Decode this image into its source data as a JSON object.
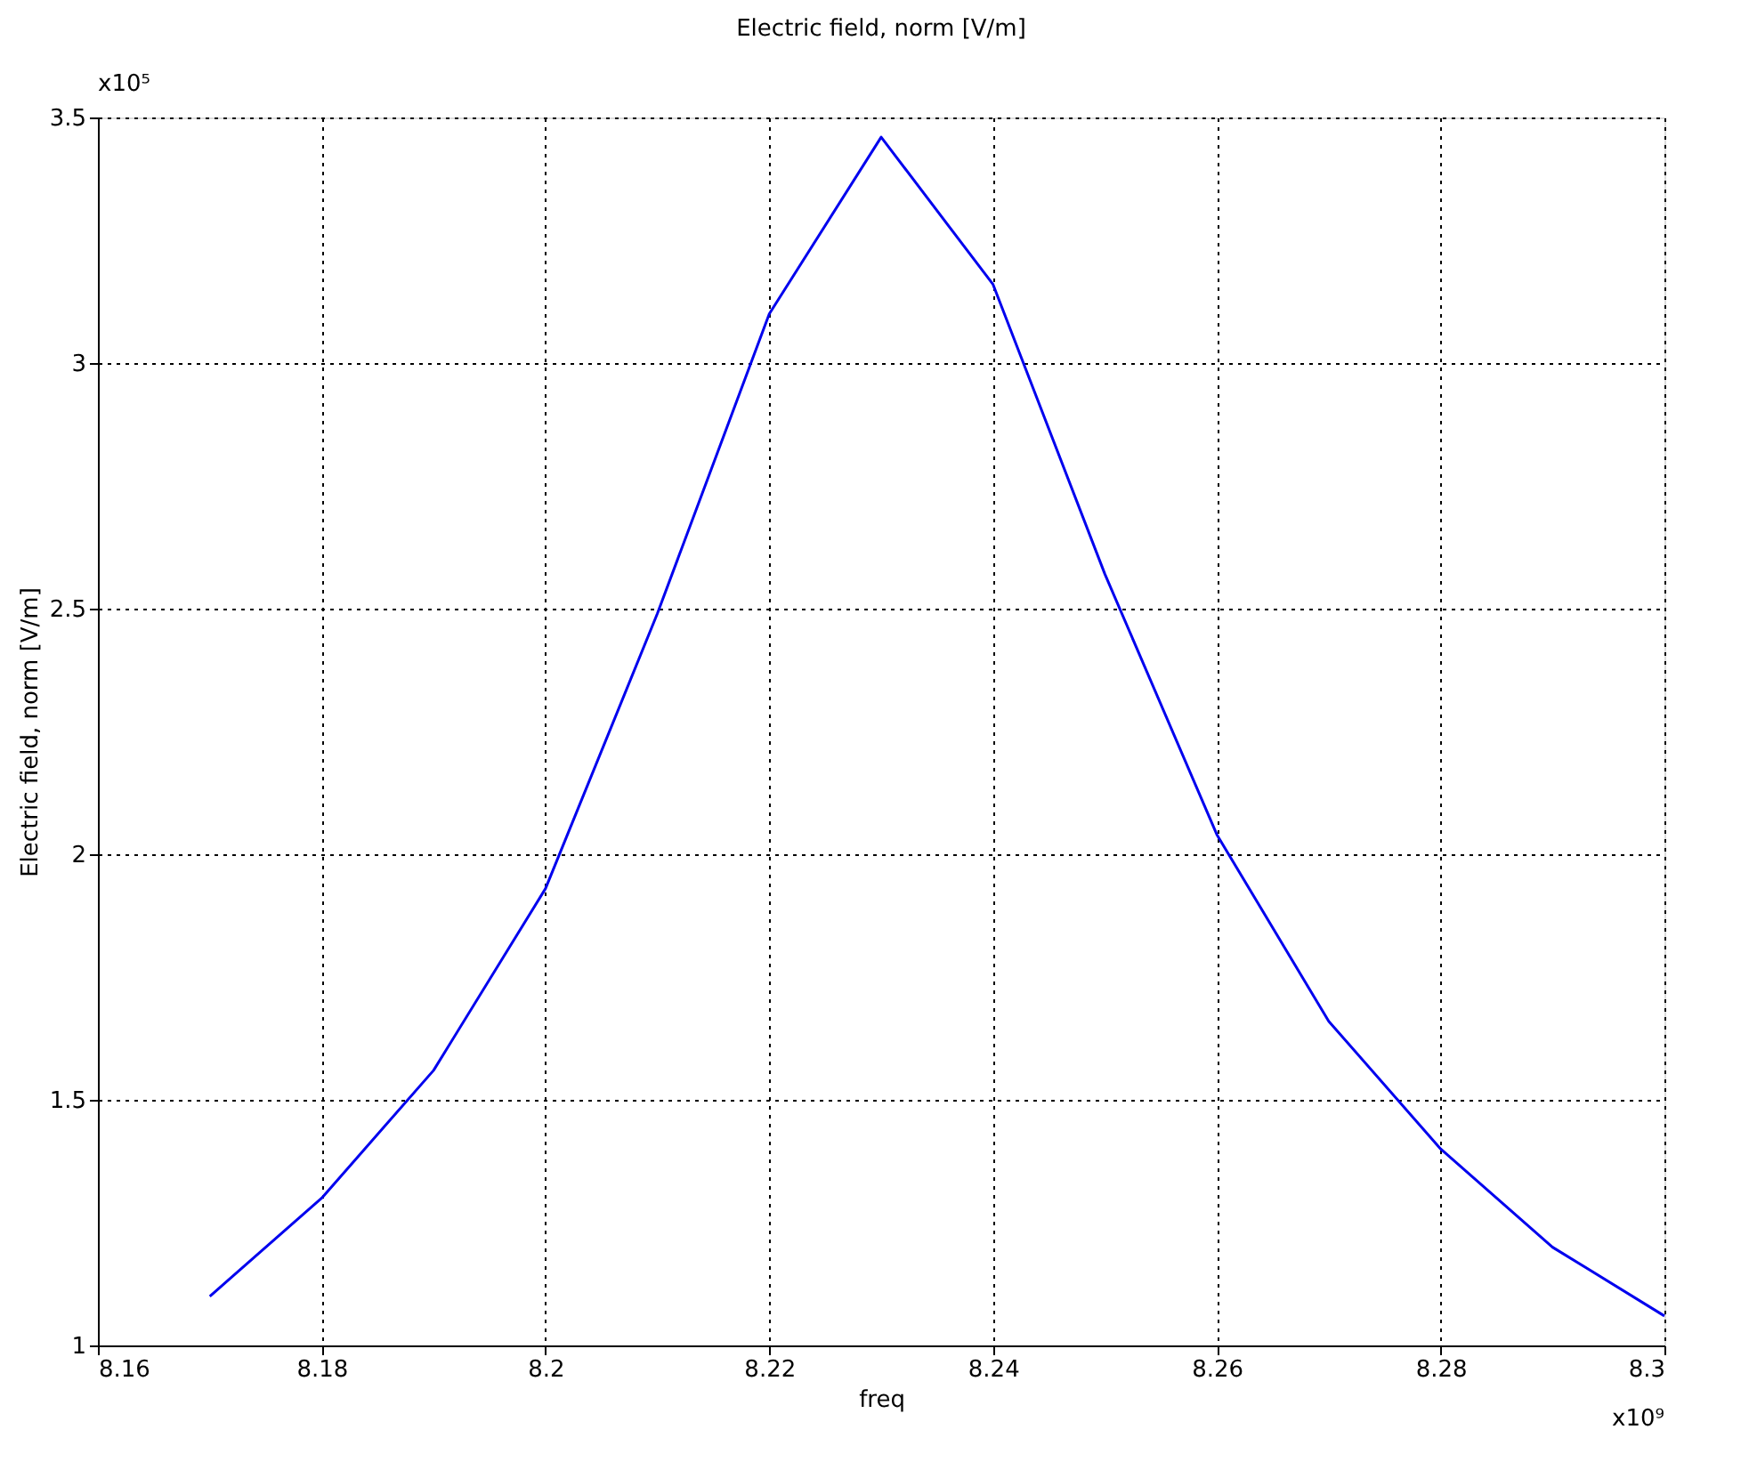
{
  "chart_data": {
    "type": "line",
    "title": "Electric field, norm [V/m]",
    "xlabel": "freq",
    "ylabel": "Electric field, norm [V/m]",
    "x": [
      8.17,
      8.18,
      8.19,
      8.2,
      8.21,
      8.22,
      8.23,
      8.24,
      8.25,
      8.26,
      8.27,
      8.28,
      8.29,
      8.3
    ],
    "series": [
      {
        "color": "#0000ee",
        "values": [
          1.1,
          1.3,
          1.56,
          1.93,
          2.49,
          3.1,
          3.46,
          3.16,
          2.57,
          2.04,
          1.66,
          1.4,
          1.2,
          1.06
        ]
      }
    ],
    "xlim": [
      8.16,
      8.3
    ],
    "xticks": [
      8.16,
      8.18,
      8.2,
      8.22,
      8.24,
      8.26,
      8.28,
      8.3
    ],
    "ylim": [
      1,
      3.5
    ],
    "yticks": [
      1,
      1.5,
      2,
      2.5,
      3,
      3.5
    ],
    "annotations": [
      "x10⁵",
      "x10⁹"
    ],
    "grid": true,
    "line_style": "solid",
    "marker": "none"
  }
}
